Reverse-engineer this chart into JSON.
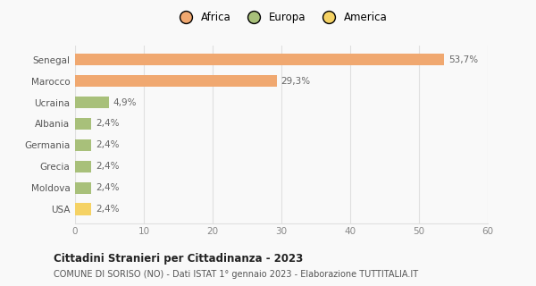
{
  "categories": [
    "USA",
    "Moldova",
    "Grecia",
    "Germania",
    "Albania",
    "Ucraina",
    "Marocco",
    "Senegal"
  ],
  "values": [
    2.4,
    2.4,
    2.4,
    2.4,
    2.4,
    4.9,
    29.3,
    53.7
  ],
  "colors": [
    "#f5d264",
    "#a8c07a",
    "#a8c07a",
    "#a8c07a",
    "#a8c07a",
    "#a8c07a",
    "#f0a870",
    "#f0a870"
  ],
  "labels": [
    "2,4%",
    "2,4%",
    "2,4%",
    "2,4%",
    "2,4%",
    "4,9%",
    "29,3%",
    "53,7%"
  ],
  "legend_items": [
    {
      "label": "Africa",
      "color": "#f0a870"
    },
    {
      "label": "Europa",
      "color": "#a8c07a"
    },
    {
      "label": "America",
      "color": "#f5d264"
    }
  ],
  "xlim": [
    0,
    60
  ],
  "xticks": [
    0,
    10,
    20,
    30,
    40,
    50,
    60
  ],
  "title": "Cittadini Stranieri per Cittadinanza - 2023",
  "subtitle": "COMUNE DI SORISO (NO) - Dati ISTAT 1° gennaio 2023 - Elaborazione TUTTITALIA.IT",
  "background_color": "#f9f9f9",
  "grid_color": "#e0e0e0"
}
